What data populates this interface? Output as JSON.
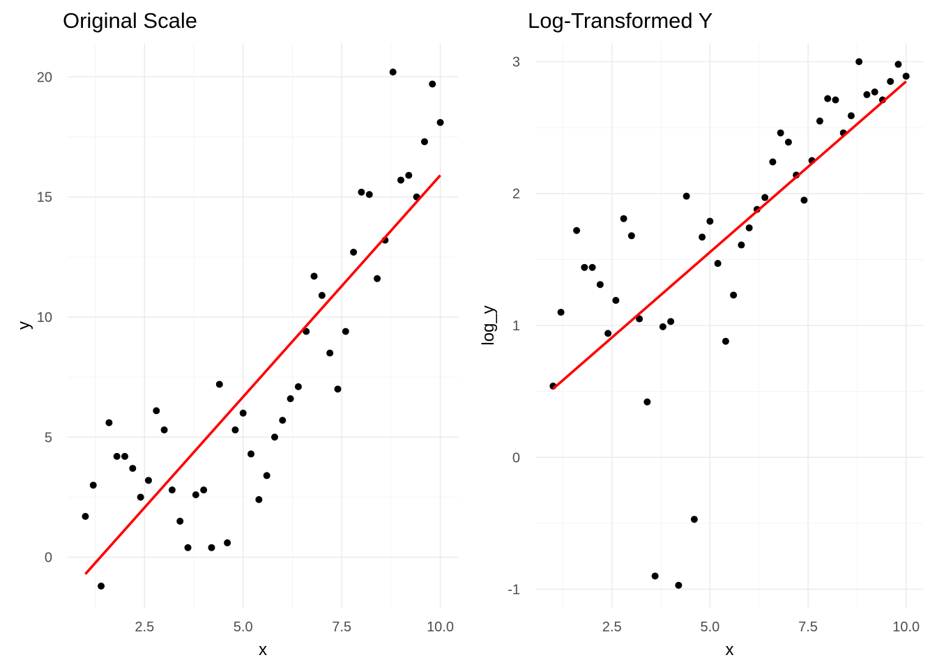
{
  "chart_data": [
    {
      "type": "scatter",
      "title": "Original Scale",
      "xlabel": "x",
      "ylabel": "y",
      "xlim": [
        0.55,
        10.45
      ],
      "ylim": [
        -2.1,
        21.4
      ],
      "x_ticks": [
        2.5,
        5.0,
        7.5,
        10.0
      ],
      "x_tick_labels": [
        "2.5",
        "5.0",
        "7.5",
        "10.0"
      ],
      "y_ticks": [
        0,
        5,
        10,
        15,
        20
      ],
      "y_tick_labels": [
        "0",
        "5",
        "10",
        "15",
        "20"
      ],
      "grid": true,
      "point_color": "#000000",
      "fit_color": "#ff0000",
      "fit_line": {
        "x": [
          1.0,
          10.0
        ],
        "y": [
          -0.7,
          15.9
        ]
      },
      "x": [
        1.0,
        1.2,
        1.4,
        1.6,
        1.8,
        2.0,
        2.2,
        2.4,
        2.6,
        2.8,
        3.0,
        3.2,
        3.4,
        3.6,
        3.8,
        4.0,
        4.2,
        4.4,
        4.6,
        4.8,
        5.0,
        5.2,
        5.4,
        5.6,
        5.8,
        6.0,
        6.2,
        6.4,
        6.6,
        6.8,
        7.0,
        7.2,
        7.4,
        7.6,
        7.8,
        8.0,
        8.2,
        8.4,
        8.6,
        8.8,
        9.0,
        9.2,
        9.4,
        9.6,
        9.8,
        10.0
      ],
      "y": [
        1.7,
        3.0,
        -1.2,
        5.6,
        4.2,
        4.2,
        3.7,
        2.5,
        3.2,
        6.1,
        5.3,
        2.8,
        1.5,
        0.4,
        2.6,
        2.8,
        0.4,
        7.2,
        0.6,
        5.3,
        6.0,
        4.3,
        2.4,
        3.4,
        5.0,
        5.7,
        6.6,
        7.1,
        9.4,
        11.7,
        10.9,
        8.5,
        7.0,
        9.4,
        12.7,
        15.2,
        15.1,
        11.6,
        13.2,
        20.2,
        15.7,
        15.9,
        15.0,
        17.3,
        19.7,
        18.1
      ]
    },
    {
      "type": "scatter",
      "title": "Log-Transformed Y",
      "xlabel": "x",
      "ylabel": "log_y",
      "xlim": [
        0.55,
        10.45
      ],
      "ylim": [
        -1.14,
        3.14
      ],
      "x_ticks": [
        2.5,
        5.0,
        7.5,
        10.0
      ],
      "x_tick_labels": [
        "2.5",
        "5.0",
        "7.5",
        "10.0"
      ],
      "y_ticks": [
        -1,
        0,
        1,
        2,
        3
      ],
      "y_tick_labels": [
        "-1",
        "0",
        "1",
        "2",
        "3"
      ],
      "grid": true,
      "point_color": "#000000",
      "fit_color": "#ff0000",
      "fit_line": {
        "x": [
          1.0,
          10.0
        ],
        "y": [
          0.52,
          2.85
        ]
      },
      "x": [
        1.0,
        1.2,
        1.6,
        1.8,
        2.0,
        2.2,
        2.4,
        2.6,
        2.8,
        3.0,
        3.2,
        3.4,
        3.6,
        3.8,
        4.0,
        4.2,
        4.4,
        4.6,
        4.8,
        5.0,
        5.2,
        5.4,
        5.6,
        5.8,
        6.0,
        6.2,
        6.4,
        6.6,
        6.8,
        7.0,
        7.2,
        7.4,
        7.6,
        7.8,
        8.0,
        8.2,
        8.4,
        8.6,
        8.8,
        9.0,
        9.2,
        9.4,
        9.6,
        9.8,
        10.0
      ],
      "y": [
        0.54,
        1.1,
        1.72,
        1.44,
        1.44,
        1.31,
        0.94,
        1.19,
        1.81,
        1.68,
        1.05,
        0.42,
        -0.9,
        0.99,
        1.03,
        -0.97,
        1.98,
        -0.47,
        1.67,
        1.79,
        1.47,
        0.88,
        1.23,
        1.61,
        1.74,
        1.88,
        1.97,
        2.24,
        2.46,
        2.39,
        2.14,
        1.95,
        2.25,
        2.55,
        2.72,
        2.71,
        2.46,
        2.59,
        3.0,
        2.75,
        2.77,
        2.71,
        2.85,
        2.98,
        2.89
      ]
    }
  ]
}
